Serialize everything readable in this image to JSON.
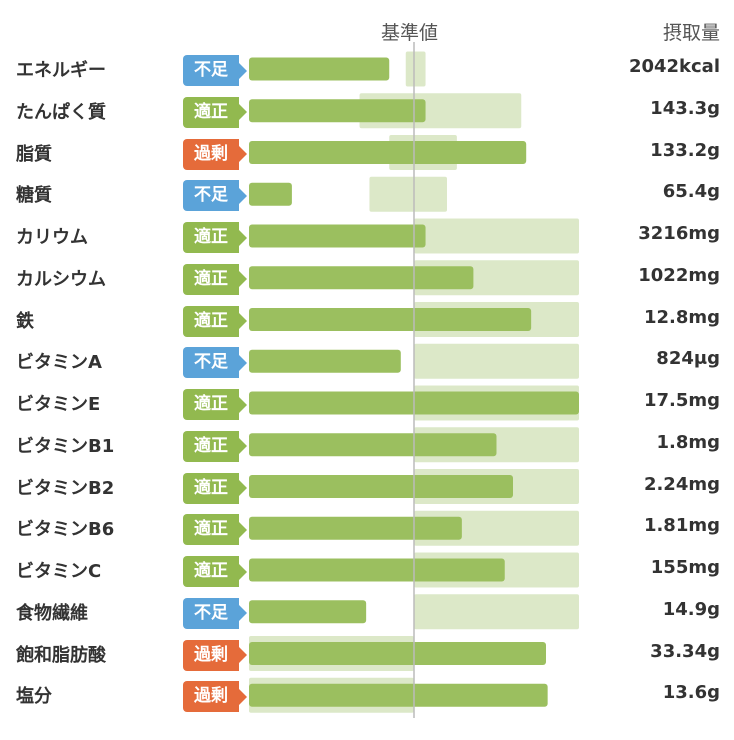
{
  "header": {
    "reference_label": "基準値",
    "intake_label": "摂取量"
  },
  "colors": {
    "bar": "#9bbf5f",
    "range": "#dce8c8",
    "line": "#bbbbbb",
    "不足": "#5ba3d9",
    "適正": "#92b94f",
    "過剰": "#e56b3a"
  },
  "chart_data": {
    "type": "bar",
    "orientation": "horizontal",
    "x_scale": "ratio to reference value (1.0 = 基準値)",
    "xlim": [
      0,
      2.0
    ],
    "rows": [
      {
        "name": "エネルギー",
        "status": "不足",
        "intake": "2042kcal",
        "ratio": 0.85,
        "range": [
          0.95,
          1.07
        ]
      },
      {
        "name": "たんぱく質",
        "status": "適正",
        "intake": "143.3g",
        "ratio": 1.07,
        "range": [
          0.67,
          1.65
        ]
      },
      {
        "name": "脂質",
        "status": "過剰",
        "intake": "133.2g",
        "ratio": 1.68,
        "range": [
          0.85,
          1.26
        ]
      },
      {
        "name": "糖質",
        "status": "不足",
        "intake": "65.4g",
        "ratio": 0.26,
        "range": [
          0.73,
          1.2
        ]
      },
      {
        "name": "カリウム",
        "status": "適正",
        "intake": "3216mg",
        "ratio": 1.07,
        "range": [
          1.0,
          2.0
        ]
      },
      {
        "name": "カルシウム",
        "status": "適正",
        "intake": "1022mg",
        "ratio": 1.36,
        "range": [
          1.0,
          2.0
        ]
      },
      {
        "name": "鉄",
        "status": "適正",
        "intake": "12.8mg",
        "ratio": 1.71,
        "range": [
          1.0,
          2.0
        ]
      },
      {
        "name": "ビタミンA",
        "status": "不足",
        "intake": "824μg",
        "ratio": 0.92,
        "range": [
          1.0,
          2.0
        ]
      },
      {
        "name": "ビタミンE",
        "status": "適正",
        "intake": "17.5mg",
        "ratio": 2.0,
        "range": [
          1.0,
          2.0
        ]
      },
      {
        "name": "ビタミンB1",
        "status": "適正",
        "intake": "1.8mg",
        "ratio": 1.5,
        "range": [
          1.0,
          2.0
        ]
      },
      {
        "name": "ビタミンB2",
        "status": "適正",
        "intake": "2.24mg",
        "ratio": 1.6,
        "range": [
          1.0,
          2.0
        ]
      },
      {
        "name": "ビタミンB6",
        "status": "適正",
        "intake": "1.81mg",
        "ratio": 1.29,
        "range": [
          1.0,
          2.0
        ]
      },
      {
        "name": "ビタミンC",
        "status": "適正",
        "intake": "155mg",
        "ratio": 1.55,
        "range": [
          1.0,
          2.0
        ]
      },
      {
        "name": "食物繊維",
        "status": "不足",
        "intake": "14.9g",
        "ratio": 0.71,
        "range": [
          1.0,
          2.0
        ]
      },
      {
        "name": "飽和脂肪酸",
        "status": "過剰",
        "intake": "33.34g",
        "ratio": 1.8,
        "range": [
          0.0,
          1.0
        ]
      },
      {
        "name": "塩分",
        "status": "過剰",
        "intake": "13.6g",
        "ratio": 1.81,
        "range": [
          0.0,
          1.0
        ]
      }
    ]
  }
}
